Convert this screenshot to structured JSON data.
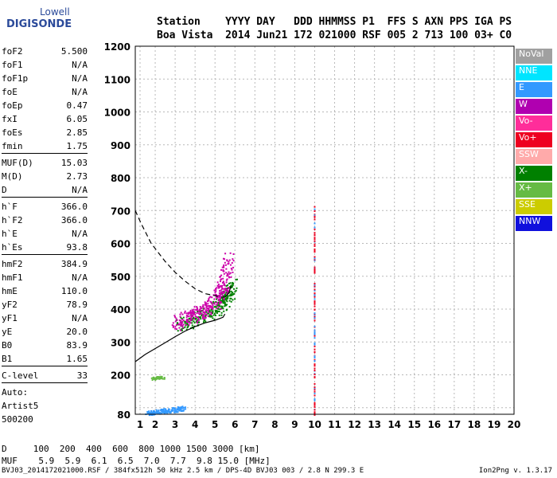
{
  "logo": {
    "line1": "Lowell",
    "line2": "DIGISONDE"
  },
  "header": {
    "line1": "Station    YYYY DAY   DDD HHMMSS P1  FFS S AXN PPS IGA PS",
    "line2": "Boa Vista  2014 Jun21 172 021000 RSF 005 2 713 100 03+ C0"
  },
  "params_group1": [
    {
      "label": "foF2",
      "value": "5.500"
    },
    {
      "label": "foF1",
      "value": "N/A"
    },
    {
      "label": "foF1p",
      "value": "N/A"
    },
    {
      "label": "foE",
      "value": "N/A"
    },
    {
      "label": "foEp",
      "value": "0.47"
    },
    {
      "label": "fxI",
      "value": "6.05"
    },
    {
      "label": "foEs",
      "value": "2.85"
    },
    {
      "label": "fmin",
      "value": "1.75"
    }
  ],
  "params_group2": [
    {
      "label": "MUF(D)",
      "value": "15.03"
    },
    {
      "label": "M(D)",
      "value": "2.73"
    },
    {
      "label": "D",
      "value": "N/A"
    }
  ],
  "params_group3": [
    {
      "label": "h`F",
      "value": "366.0"
    },
    {
      "label": "h`F2",
      "value": "366.0"
    },
    {
      "label": "h`E",
      "value": "N/A"
    },
    {
      "label": "h`Es",
      "value": "93.8"
    }
  ],
  "params_group4": [
    {
      "label": "hmF2",
      "value": "384.9"
    },
    {
      "label": "hmF1",
      "value": "N/A"
    },
    {
      "label": "hmE",
      "value": "110.0"
    },
    {
      "label": "yF2",
      "value": "78.9"
    },
    {
      "label": "yF1",
      "value": "N/A"
    },
    {
      "label": "yE",
      "value": "20.0"
    },
    {
      "label": "B0",
      "value": "83.9"
    },
    {
      "label": "B1",
      "value": "1.65"
    }
  ],
  "params_group5": [
    {
      "label": "C-level",
      "value": "33"
    }
  ],
  "autoscale": {
    "line1": "Auto:",
    "line2": "Artist5",
    "line3": "500200"
  },
  "legend": [
    {
      "label": "NoVal",
      "color": "#a0a0a0"
    },
    {
      "label": "NNE",
      "color": "#00e5ff"
    },
    {
      "label": "E",
      "color": "#3399ff"
    },
    {
      "label": "W",
      "color": "#b000b0"
    },
    {
      "label": "Vo-",
      "color": "#ff2d9a"
    },
    {
      "label": "Vo+",
      "color": "#ee0020"
    },
    {
      "label": "SSW",
      "color": "#ffaaaa"
    },
    {
      "label": "X-",
      "color": "#008000"
    },
    {
      "label": "X+",
      "color": "#66bb44"
    },
    {
      "label": "SSE",
      "color": "#cccc00"
    },
    {
      "label": "NNW",
      "color": "#1010dd"
    }
  ],
  "distance_table": {
    "line1": "D     100  200  400  600  800 1000 1500 3000 [km]",
    "line2": "MUF    5.9  5.9  6.1  6.5  7.0  7.7  9.8 15.0 [MHz]"
  },
  "footer": "BVJ03_2014172021000.RSF / 384fx512h 50 kHz 2.5 km / DPS-4D BVJ03 003 / 2.8 N 299.3 E",
  "version": "Ion2Png v. 1.3.17",
  "chart_data": {
    "type": "scatter",
    "xlim": [
      1,
      20
    ],
    "ylim": [
      80,
      1200
    ],
    "x_ticks": [
      1,
      2,
      3,
      4,
      5,
      6,
      7,
      8,
      9,
      10,
      11,
      12,
      13,
      14,
      15,
      16,
      17,
      18,
      19,
      20
    ],
    "y_ticks": [
      80,
      100,
      200,
      300,
      400,
      500,
      600,
      700,
      800,
      900,
      1000,
      1100,
      1200
    ],
    "y_tick_labels": [
      "80",
      "",
      "200",
      "300",
      "400",
      "500",
      "600",
      "700",
      "800",
      "900",
      "1000",
      "1100",
      "1200"
    ],
    "grid": true,
    "legend_position": "right",
    "trace_F2_oblique": {
      "color": "#cc00aa",
      "x": [
        3.0,
        3.5,
        4.0,
        4.5,
        5.0,
        5.3,
        5.5,
        5.7
      ],
      "y": [
        360,
        372,
        385,
        400,
        425,
        450,
        500,
        560
      ]
    },
    "trace_F2_extraordinary": {
      "color": "#008000",
      "x": [
        3.3,
        3.8,
        4.3,
        4.8,
        5.2,
        5.6,
        5.8
      ],
      "y": [
        355,
        365,
        378,
        392,
        410,
        440,
        480
      ]
    },
    "trace_Es": {
      "color": "#3399ff",
      "x": [
        1.6,
        2.0,
        2.5,
        3.0,
        3.3
      ],
      "y": [
        85,
        88,
        92,
        95,
        100
      ]
    },
    "trace_Es_second": {
      "color": "#66bb44",
      "x": [
        1.8,
        2.0,
        2.2,
        2.4
      ],
      "y": [
        190,
        192,
        194,
        192
      ]
    },
    "interference_band": {
      "color": "#ee0020",
      "x": [
        10.0,
        10.0
      ],
      "y": [
        80,
        730
      ]
    },
    "profile_solid": {
      "color": "#000000",
      "x": [
        1.0,
        1.5,
        2.0,
        2.5,
        3.0,
        3.5,
        4.0,
        4.5,
        5.0,
        5.4,
        5.5
      ],
      "y": [
        240,
        262,
        280,
        298,
        316,
        333,
        347,
        358,
        366,
        375,
        385
      ]
    },
    "profile_dashed": {
      "color": "#000000",
      "x": [
        1.0,
        1.3,
        1.8,
        2.5,
        3.0,
        3.5,
        4.0,
        4.5,
        5.0,
        5.3,
        5.5
      ],
      "y": [
        700,
        660,
        600,
        545,
        512,
        485,
        462,
        447,
        441,
        437,
        436
      ]
    },
    "profile_connector": {
      "color": "#000000",
      "x": [
        5.5,
        5.7,
        5.8
      ],
      "y": [
        436,
        450,
        470
      ]
    }
  }
}
